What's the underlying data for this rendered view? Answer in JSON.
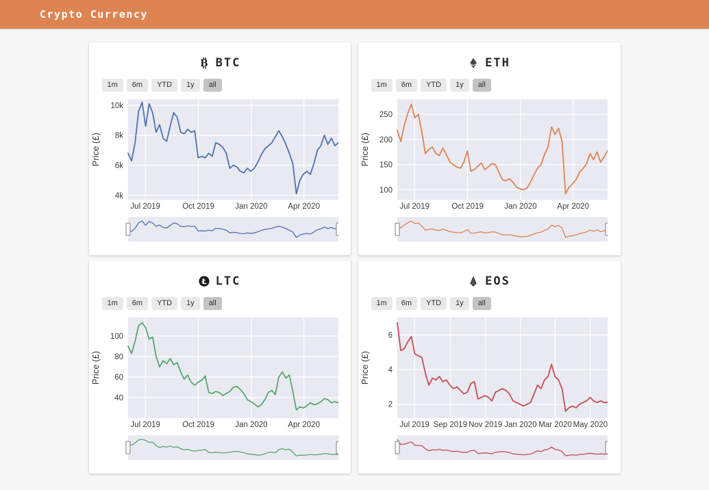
{
  "header": {
    "title": "Crypto Currency"
  },
  "range_buttons": [
    "1m",
    "6m",
    "YTD",
    "1y",
    "all"
  ],
  "active_range": "all",
  "colors": {
    "header_bg": "#dd8452",
    "page_bg": "#f7f7f8",
    "card_bg": "#ffffff",
    "plot_bg": "#e9e9f2",
    "grid_line": "#ffffff",
    "tick_text": "#3a3a3a",
    "button_bg": "#e9e9e9",
    "button_active_bg": "#c4c4c4",
    "slider_handle_border": "#7f7f7f"
  },
  "chart_data": [
    {
      "type": "line",
      "symbol": "BTC",
      "icon": "btc-icon",
      "line_color": "#4c72b0",
      "ylabel": "Price (£)",
      "ylim": [
        3700,
        10400
      ],
      "yticks": [
        {
          "v": 4000,
          "label": "4k"
        },
        {
          "v": 6000,
          "label": "6k"
        },
        {
          "v": 8000,
          "label": "8k"
        },
        {
          "v": 10000,
          "label": "10k"
        }
      ],
      "xticks": [
        {
          "f": 0.082,
          "label": "Jul 2019"
        },
        {
          "f": 0.334,
          "label": "Oct 2019"
        },
        {
          "f": 0.586,
          "label": "Jan 2020"
        },
        {
          "f": 0.836,
          "label": "Apr 2020"
        }
      ],
      "x_range": [
        "Jun 2019",
        "May 2020"
      ],
      "values": [
        6800,
        6300,
        7500,
        9600,
        10200,
        8600,
        10100,
        9500,
        8200,
        8700,
        7800,
        7600,
        8600,
        9500,
        9200,
        8200,
        8100,
        8400,
        8200,
        8300,
        6500,
        6600,
        6500,
        6800,
        6600,
        7500,
        7400,
        7200,
        6800,
        5800,
        6000,
        5900,
        5600,
        5500,
        5800,
        5600,
        5800,
        6200,
        6700,
        7100,
        7300,
        7500,
        7900,
        8300,
        7900,
        7400,
        6800,
        6100,
        4100,
        5000,
        5400,
        5600,
        5400,
        6100,
        7000,
        7300,
        8000,
        7400,
        7800,
        7300,
        7500
      ]
    },
    {
      "type": "line",
      "symbol": "ETH",
      "icon": "eth-icon",
      "line_color": "#dd8452",
      "ylabel": "Price (£)",
      "ylim": [
        80,
        280
      ],
      "yticks": [
        {
          "v": 100,
          "label": "100"
        },
        {
          "v": 150,
          "label": "150"
        },
        {
          "v": 200,
          "label": "200"
        },
        {
          "v": 250,
          "label": "250"
        }
      ],
      "xticks": [
        {
          "f": 0.082,
          "label": "Jul 2019"
        },
        {
          "f": 0.334,
          "label": "Oct 2019"
        },
        {
          "f": 0.586,
          "label": "Jan 2020"
        },
        {
          "f": 0.836,
          "label": "Apr 2020"
        }
      ],
      "x_range": [
        "Jun 2019",
        "May 2020"
      ],
      "values": [
        218,
        196,
        228,
        252,
        270,
        243,
        250,
        215,
        172,
        180,
        185,
        172,
        168,
        183,
        170,
        155,
        150,
        145,
        143,
        155,
        177,
        137,
        140,
        147,
        153,
        140,
        146,
        152,
        150,
        135,
        120,
        118,
        122,
        115,
        105,
        102,
        100,
        103,
        115,
        130,
        143,
        150,
        170,
        185,
        225,
        210,
        222,
        196,
        92,
        105,
        112,
        120,
        135,
        142,
        152,
        172,
        160,
        175,
        155,
        165,
        178
      ]
    },
    {
      "type": "line",
      "symbol": "LTC",
      "icon": "ltc-icon",
      "line_color": "#55a868",
      "ylabel": "Price (£)",
      "ylim": [
        20,
        118
      ],
      "yticks": [
        {
          "v": 40,
          "label": "40"
        },
        {
          "v": 60,
          "label": "60"
        },
        {
          "v": 80,
          "label": "80"
        },
        {
          "v": 100,
          "label": "100"
        }
      ],
      "xticks": [
        {
          "f": 0.082,
          "label": "Jul 2019"
        },
        {
          "f": 0.334,
          "label": "Oct 2019"
        },
        {
          "f": 0.586,
          "label": "Jan 2020"
        },
        {
          "f": 0.836,
          "label": "Apr 2020"
        }
      ],
      "x_range": [
        "Jun 2019",
        "May 2020"
      ],
      "values": [
        90,
        83,
        95,
        110,
        113,
        108,
        97,
        99,
        80,
        70,
        76,
        73,
        78,
        72,
        74,
        65,
        58,
        62,
        55,
        52,
        55,
        57,
        61,
        45,
        44,
        46,
        45,
        42,
        44,
        46,
        50,
        51,
        48,
        44,
        38,
        36,
        34,
        31,
        33,
        38,
        45,
        47,
        43,
        60,
        65,
        59,
        62,
        46,
        28,
        31,
        30,
        32,
        35,
        33,
        34,
        36,
        39,
        38,
        35,
        36,
        35
      ]
    },
    {
      "type": "line",
      "symbol": "EOS",
      "icon": "eos-icon",
      "line_color": "#c44e52",
      "ylabel": "Price (£)",
      "ylim": [
        1.2,
        7.0
      ],
      "yticks": [
        {
          "v": 2,
          "label": "2"
        },
        {
          "v": 4,
          "label": "4"
        },
        {
          "v": 6,
          "label": "6"
        }
      ],
      "xticks": [
        {
          "f": 0.082,
          "label": "Jul 2019"
        },
        {
          "f": 0.252,
          "label": "Sep 2019"
        },
        {
          "f": 0.419,
          "label": "Nov 2019"
        },
        {
          "f": 0.586,
          "label": "Jan 2020"
        },
        {
          "f": 0.751,
          "label": "Mar 2020"
        },
        {
          "f": 0.918,
          "label": "May 2020"
        }
      ],
      "x_range": [
        "Jun 2019",
        "May 2020"
      ],
      "values": [
        6.7,
        5.1,
        5.2,
        5.6,
        5.9,
        4.9,
        4.8,
        4.7,
        3.8,
        3.1,
        3.5,
        3.4,
        3.6,
        3.3,
        3.4,
        3.1,
        2.9,
        3.0,
        2.8,
        2.6,
        2.7,
        3.2,
        3.3,
        2.3,
        2.4,
        2.5,
        2.4,
        2.2,
        2.7,
        2.8,
        2.9,
        2.8,
        2.6,
        2.2,
        2.1,
        2.0,
        1.9,
        2.0,
        2.1,
        2.6,
        3.1,
        2.9,
        3.4,
        3.6,
        4.3,
        3.6,
        3.4,
        2.9,
        1.6,
        1.8,
        1.9,
        1.8,
        2.0,
        2.1,
        2.2,
        2.4,
        2.2,
        2.1,
        2.2,
        2.1,
        2.1
      ]
    }
  ]
}
